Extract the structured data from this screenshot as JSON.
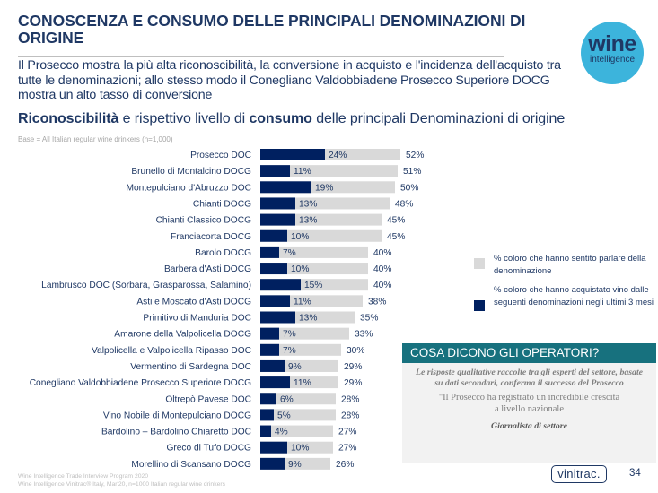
{
  "header": {
    "title": "CONOSCENZA E CONSUMO DELLE PRINCIPALI DENOMINAZIONI DI ORIGINE",
    "subtitle": "Il Prosecco mostra la più alta riconoscibilità, la conversione in acquisto e l'incidenza dell'acquisto tra tutte le denominazioni; allo stesso modo il Conegliano Valdobbiadene Prosecco Superiore DOCG mostra un alto tasso di conversione",
    "logo_line1": "wine",
    "logo_line2": "intelligence"
  },
  "section": {
    "bold1": "Riconoscibilità",
    "text1": " e rispettivo livello di ",
    "bold2": "consumo",
    "text2": " delle principali Denominazioni di origine",
    "base": "Base = All Italian regular wine drinkers (n=1,000)"
  },
  "colors": {
    "awareness": "#d9d9d9",
    "purchase": "#002060",
    "text": "#1f3864",
    "operators_header": "#17717e",
    "logo": "#3cb4dc"
  },
  "chart_data": {
    "type": "bar",
    "orientation": "horizontal",
    "title": "Riconoscibilità e rispettivo livello di consumo delle principali Denominazioni di origine",
    "xlabel": "",
    "ylabel": "",
    "xlim": [
      0,
      100
    ],
    "unit": "%",
    "grid": false,
    "legend_position": "right",
    "categories": [
      "Prosecco DOC",
      "Brunello di Montalcino DOCG",
      "Montepulciano d'Abruzzo DOC",
      "Chianti DOCG",
      "Chianti Classico DOCG",
      "Franciacorta DOCG",
      "Barolo DOCG",
      "Barbera d'Asti DOCG",
      "Lambrusco DOC (Sorbara, Grasparossa, Salamino)",
      "Asti e Moscato d'Asti DOCG",
      "Primitivo di Manduria DOC",
      "Amarone della Valpolicella DOCG",
      "Valpolicella e Valpolicella Ripasso DOC",
      "Vermentino di Sardegna DOC",
      "Conegliano Valdobbiadene Prosecco Superiore DOCG",
      "Oltrepò Pavese DOC",
      "Vino Nobile di Montepulciano DOCG",
      "Bardolino – Bardolino Chiaretto DOC",
      "Greco di Tufo DOCG",
      "Morellino di Scansano DOCG"
    ],
    "series": [
      {
        "name": "% coloro che hanno sentito parlare della denominazione",
        "values": [
          52,
          51,
          50,
          48,
          45,
          45,
          40,
          40,
          40,
          38,
          35,
          33,
          30,
          29,
          29,
          28,
          28,
          27,
          27,
          26
        ]
      },
      {
        "name": "% coloro che hanno acquistato vino dalle seguenti denominazioni negli ultimi 3 mesi",
        "values": [
          24,
          11,
          19,
          13,
          13,
          10,
          7,
          10,
          15,
          11,
          13,
          7,
          7,
          9,
          11,
          6,
          5,
          4,
          10,
          9
        ]
      }
    ]
  },
  "legend": {
    "awareness_label": "% coloro che hanno sentito parlare della denominazione",
    "purchase_label": "% coloro che hanno acquistato vino dalle seguenti denominazioni negli ultimi 3 mesi"
  },
  "operators": {
    "heading": "COSA DICONO GLI OPERATORI?",
    "intro": "Le risposte qualitative raccolte tra gli esperti del settore, basate su dati secondari, conferma il successo del Prosecco",
    "quote": "\"Il Prosecco ha registrato un incredibile crescita a livello nazionale",
    "source": "Giornalista di settore"
  },
  "footer": {
    "line1": "Wine Intelligence Trade Interview Program 2020",
    "line2": "Wine Intelligence Vinitrac® Italy, Mar'20, n=1000 Italian regular wine drinkers",
    "brand": "vinitrac.",
    "page": "34"
  }
}
